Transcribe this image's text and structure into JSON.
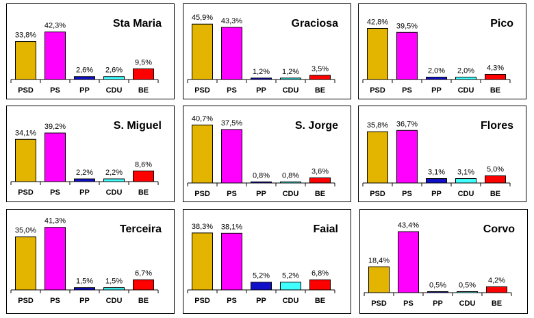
{
  "colors": {
    "PSD": "#e3b500",
    "PS": "#ff00ff",
    "PP": "#1010c8",
    "CDU": "#40ffff",
    "BE": "#ff0000"
  },
  "chart_data": [
    {
      "type": "bar",
      "title": "Sta Maria",
      "categories": [
        "PSD",
        "PS",
        "PP",
        "CDU",
        "BE"
      ],
      "values": [
        33.8,
        42.3,
        2.6,
        2.6,
        9.5
      ],
      "labels": [
        "33,8%",
        "42,3%",
        "2,6%",
        "2,6%",
        "9,5%"
      ],
      "ylim": [
        0,
        50
      ],
      "xlabel": "",
      "ylabel": ""
    },
    {
      "type": "bar",
      "title": "Graciosa",
      "categories": [
        "PSD",
        "PS",
        "PP",
        "CDU",
        "BE"
      ],
      "values": [
        45.9,
        43.3,
        1.2,
        1.2,
        3.5
      ],
      "labels": [
        "45,9%",
        "43,3%",
        "1,2%",
        "1,2%",
        "3,5%"
      ],
      "ylim": [
        0,
        50
      ],
      "xlabel": "",
      "ylabel": ""
    },
    {
      "type": "bar",
      "title": "Pico",
      "categories": [
        "PSD",
        "PS",
        "PP",
        "CDU",
        "BE"
      ],
      "values": [
        42.8,
        39.5,
        2.0,
        2.0,
        4.3
      ],
      "labels": [
        "42,8%",
        "39,5%",
        "2,0%",
        "2,0%",
        "4,3%"
      ],
      "ylim": [
        0,
        50
      ],
      "xlabel": "",
      "ylabel": ""
    },
    {
      "type": "bar",
      "title": "S. Miguel",
      "categories": [
        "PSD",
        "PS",
        "PP",
        "CDU",
        "BE"
      ],
      "values": [
        34.1,
        39.2,
        2.2,
        2.2,
        8.6
      ],
      "labels": [
        "34,1%",
        "39,2%",
        "2,2%",
        "2,2%",
        "8,6%"
      ],
      "ylim": [
        0,
        50
      ],
      "xlabel": "",
      "ylabel": ""
    },
    {
      "type": "bar",
      "title": "S. Jorge",
      "categories": [
        "PSD",
        "PS",
        "PP",
        "CDU",
        "BE"
      ],
      "values": [
        40.7,
        37.5,
        0.8,
        0.8,
        3.6
      ],
      "labels": [
        "40,7%",
        "37,5%",
        "0,8%",
        "0,8%",
        "3,6%"
      ],
      "ylim": [
        0,
        50
      ],
      "xlabel": "",
      "ylabel": ""
    },
    {
      "type": "bar",
      "title": "Flores",
      "categories": [
        "PSD",
        "PS",
        "PP",
        "CDU",
        "BE"
      ],
      "values": [
        35.8,
        36.7,
        3.1,
        3.1,
        5.0
      ],
      "labels": [
        "35,8%",
        "36,7%",
        "3,1%",
        "3,1%",
        "5,0%"
      ],
      "ylim": [
        0,
        50
      ],
      "xlabel": "",
      "ylabel": ""
    },
    {
      "type": "bar",
      "title": "Terceira",
      "categories": [
        "PSD",
        "PS",
        "PP",
        "CDU",
        "BE"
      ],
      "values": [
        35.0,
        41.3,
        1.5,
        1.5,
        6.7
      ],
      "labels": [
        "35,0%",
        "41,3%",
        "1,5%",
        "1,5%",
        "6,7%"
      ],
      "ylim": [
        0,
        50
      ],
      "xlabel": "",
      "ylabel": ""
    },
    {
      "type": "bar",
      "title": "Faial",
      "categories": [
        "PSD",
        "PS",
        "PP",
        "CDU",
        "BE"
      ],
      "values": [
        38.3,
        38.1,
        5.2,
        5.2,
        6.8
      ],
      "labels": [
        "38,3%",
        "38,1%",
        "5,2%",
        "5,2%",
        "6,8%"
      ],
      "ylim": [
        0,
        50
      ],
      "xlabel": "",
      "ylabel": ""
    },
    {
      "type": "bar",
      "title": "Corvo",
      "categories": [
        "PSD",
        "PS",
        "PP",
        "CDU",
        "BE"
      ],
      "values": [
        18.4,
        43.4,
        0.5,
        0.5,
        4.2
      ],
      "labels": [
        "18,4%",
        "43,4%",
        "0,5%",
        "0,5%",
        "4,2%"
      ],
      "ylim": [
        0,
        50
      ],
      "xlabel": "",
      "ylabel": ""
    }
  ]
}
